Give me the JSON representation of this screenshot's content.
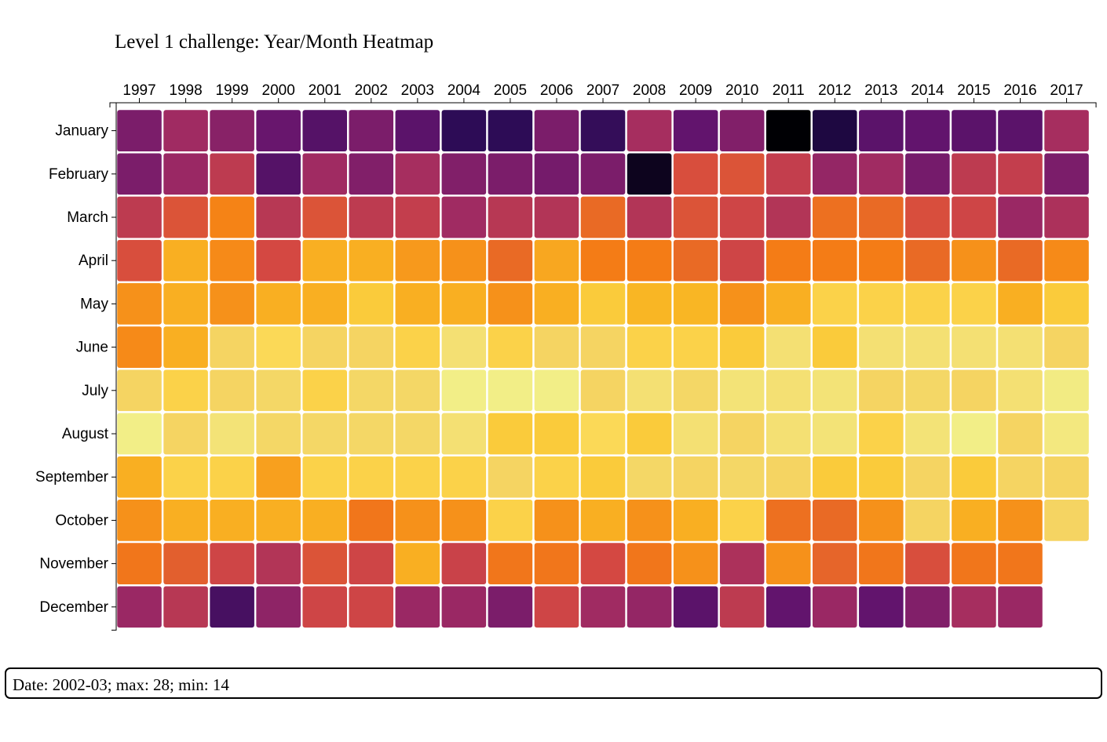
{
  "chart_data": {
    "type": "heatmap",
    "title": "Level 1 challenge: Year/Month Heatmap",
    "years": [
      "1997",
      "1998",
      "1999",
      "2000",
      "2001",
      "2002",
      "2003",
      "2004",
      "2005",
      "2006",
      "2007",
      "2008",
      "2009",
      "2010",
      "2011",
      "2012",
      "2013",
      "2014",
      "2015",
      "2016",
      "2017"
    ],
    "months": [
      "January",
      "February",
      "March",
      "April",
      "May",
      "June",
      "July",
      "August",
      "September",
      "October",
      "November",
      "December"
    ],
    "value_range": [
      14,
      28
    ],
    "colormap": "inferno",
    "grid": false,
    "values": [
      [
        18.4,
        19.6,
        18.8,
        17.8,
        17.2,
        18.4,
        17.4,
        16.0,
        16.0,
        18.4,
        16.2,
        19.8,
        17.6,
        18.6,
        14.0,
        15.4,
        17.4,
        17.6,
        17.4,
        17.4,
        19.8
      ],
      [
        18.4,
        19.4,
        20.6,
        17.2,
        19.6,
        18.6,
        19.8,
        18.6,
        18.4,
        18.2,
        18.4,
        14.6,
        21.6,
        21.8,
        20.8,
        19.2,
        19.6,
        18.2,
        20.6,
        20.8,
        18.4
      ],
      [
        20.6,
        21.8,
        23.4,
        20.4,
        21.8,
        20.6,
        20.8,
        19.6,
        20.4,
        20.2,
        22.6,
        20.2,
        21.8,
        21.2,
        20.2,
        22.8,
        22.6,
        21.6,
        21.2,
        19.4,
        20.0
      ],
      [
        21.6,
        24.6,
        23.6,
        21.4,
        24.6,
        24.6,
        24.0,
        23.8,
        22.6,
        24.4,
        23.2,
        23.2,
        22.6,
        21.2,
        23.2,
        23.2,
        23.2,
        22.6,
        23.8,
        22.6,
        23.6
      ],
      [
        23.8,
        24.6,
        23.8,
        24.6,
        24.6,
        25.4,
        24.6,
        24.6,
        23.8,
        24.6,
        25.4,
        24.8,
        24.8,
        23.8,
        24.6,
        25.6,
        25.6,
        25.6,
        25.6,
        24.6,
        25.4
      ],
      [
        23.6,
        24.6,
        26.2,
        25.8,
        26.2,
        26.2,
        25.6,
        27.0,
        25.6,
        26.2,
        26.2,
        25.6,
        25.6,
        25.4,
        27.0,
        25.4,
        27.0,
        27.0,
        27.0,
        27.0,
        26.2
      ],
      [
        26.2,
        25.6,
        26.2,
        26.4,
        25.6,
        26.4,
        26.4,
        28.0,
        28.0,
        28.0,
        26.2,
        27.0,
        26.4,
        27.2,
        27.0,
        27.2,
        26.2,
        26.4,
        26.2,
        27.0,
        27.8
      ],
      [
        28.0,
        26.2,
        27.2,
        26.4,
        26.4,
        26.4,
        26.4,
        27.0,
        25.4,
        25.4,
        25.8,
        25.4,
        27.0,
        26.2,
        27.0,
        27.2,
        25.6,
        27.2,
        28.0,
        26.2,
        27.6
      ],
      [
        24.6,
        25.6,
        25.6,
        24.2,
        25.6,
        25.6,
        25.6,
        25.6,
        26.2,
        25.6,
        25.4,
        26.4,
        26.2,
        26.4,
        26.2,
        25.4,
        25.4,
        26.2,
        25.4,
        26.2,
        26.2
      ],
      [
        23.8,
        24.6,
        24.6,
        24.6,
        24.6,
        23.0,
        23.8,
        23.8,
        25.6,
        23.8,
        24.6,
        23.8,
        24.6,
        25.6,
        22.8,
        22.6,
        23.8,
        26.2,
        24.6,
        23.8,
        26.2
      ],
      [
        23.0,
        22.2,
        21.2,
        20.2,
        21.8,
        21.2,
        24.6,
        21.0,
        23.0,
        23.0,
        21.4,
        23.0,
        23.8,
        20.0,
        23.8,
        22.4,
        23.0,
        21.6,
        23.0,
        23.0,
        null
      ],
      [
        19.4,
        20.4,
        16.8,
        19.0,
        21.2,
        21.2,
        19.4,
        19.4,
        18.4,
        21.2,
        19.6,
        19.2,
        17.4,
        20.6,
        17.6,
        19.4,
        17.6,
        18.6,
        19.8,
        19.4,
        null
      ]
    ]
  },
  "tooltip": {
    "text": "Date: 2002-03; max: 28; min: 14"
  }
}
